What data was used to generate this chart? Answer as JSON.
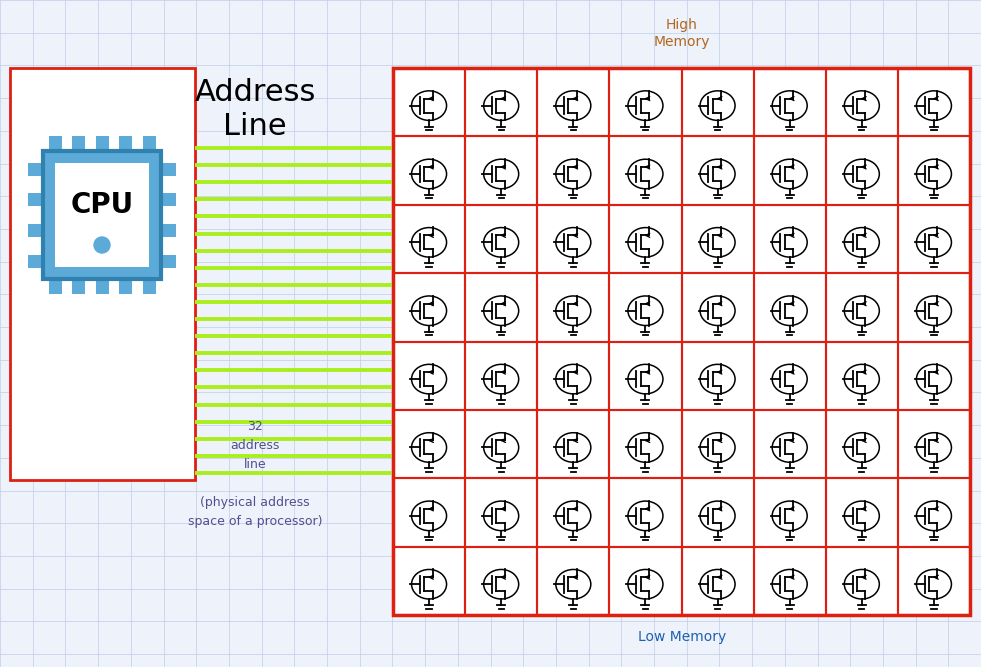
{
  "bg_color": "#eef2fa",
  "grid_color": "#c0cce8",
  "title_high": "High\nMemory",
  "title_low": "Low Memory",
  "high_color": "#b06820",
  "low_color": "#2060b0",
  "address_line_label": "Address\nLine",
  "address_line_label_fontsize": 22,
  "cpu_label": "CPU",
  "cpu_box_color": "#5baad8",
  "cpu_border_color": "#3080b0",
  "red_border_color": "#dd2010",
  "green_line_color": "#aaee20",
  "annotation_text": "32\naddress\nline\n\n(physical address\nspace of a processor)",
  "annotation_fontsize": 9,
  "annotation_color": "#505090",
  "memory_rows": 8,
  "memory_cols": 8,
  "figw": 9.81,
  "figh": 6.67
}
